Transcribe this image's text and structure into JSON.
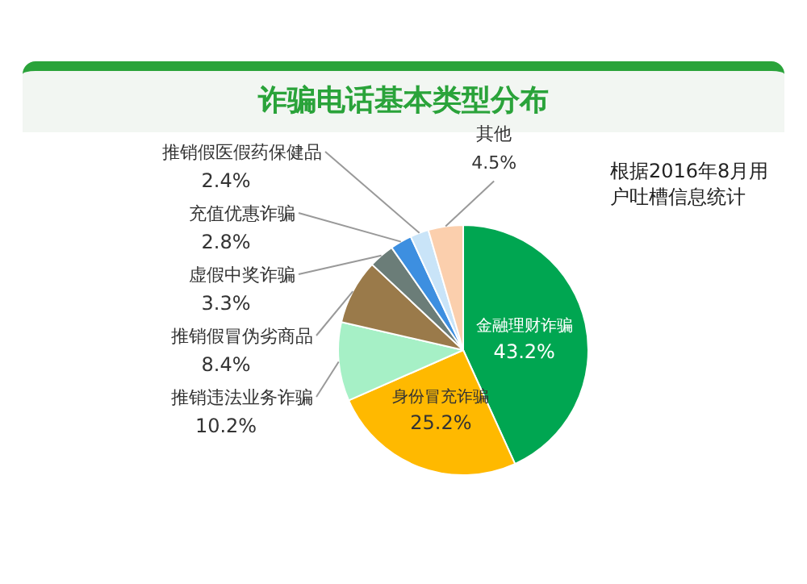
{
  "chart_data": {
    "type": "pie",
    "title": "诈骗电话基本类型分布",
    "categories": [
      "金融理财诈骗",
      "身份冒充诈骗",
      "推销违法业务诈骗",
      "推销假冒伪劣商品",
      "虚假中奖诈骗",
      "充值优惠诈骗",
      "推销假医假药保健品",
      "其他"
    ],
    "values": [
      43.2,
      25.2,
      10.2,
      8.4,
      3.3,
      2.8,
      2.4,
      4.5
    ],
    "colors": [
      "#00a651",
      "#ffb900",
      "#a6f0c6",
      "#9a7a4a",
      "#6b7d78",
      "#3d8fe0",
      "#c9e4f8",
      "#fbcfad"
    ],
    "value_labels": [
      "43.2%",
      "25.2%",
      "10.2%",
      "8.4%",
      "3.3%",
      "2.8%",
      "2.4%",
      "4.5%"
    ],
    "annotations": [
      "根据2016年8月用户吐槽信息统计"
    ]
  }
}
